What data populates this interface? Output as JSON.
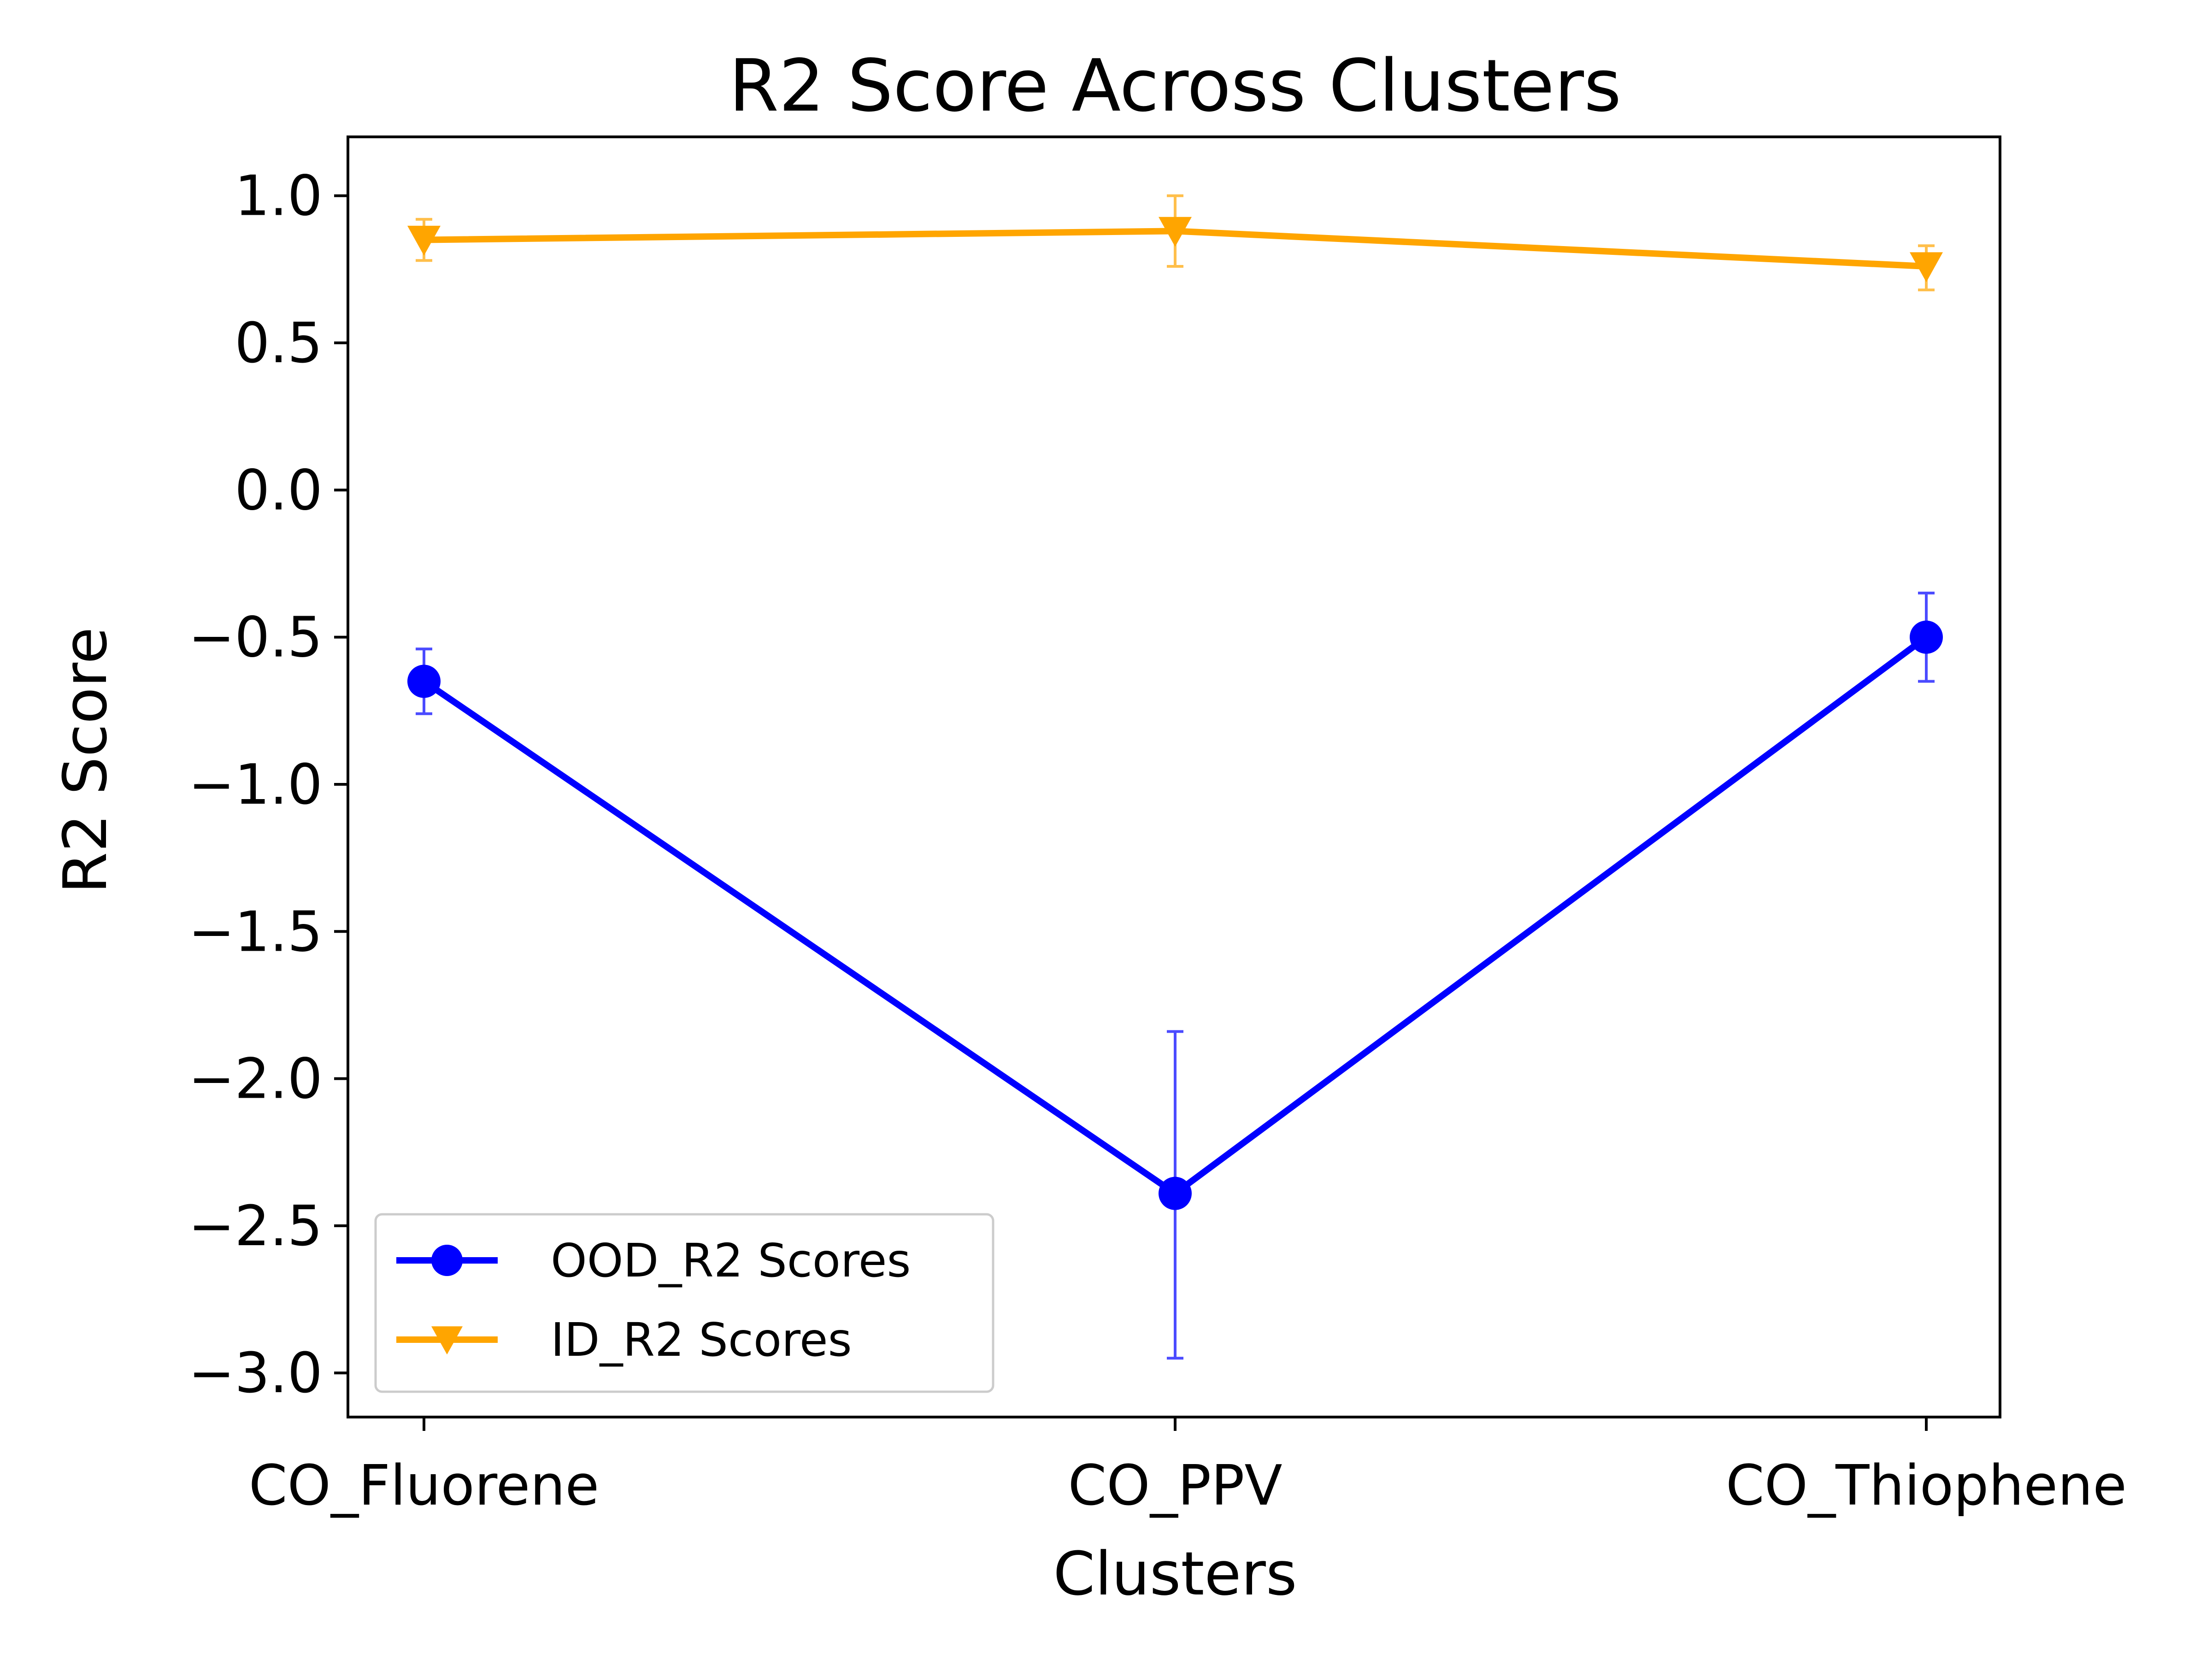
{
  "chart_data": {
    "type": "line",
    "title": "R2 Score Across Clusters",
    "xlabel": "Clusters",
    "ylabel": "R2 Score",
    "categories": [
      "CO_Fluorene",
      "CO_PPV",
      "CO_Thiophene"
    ],
    "ylim": [
      -3.15,
      1.2
    ],
    "yticks": [
      1.0,
      0.5,
      0.0,
      -0.5,
      -1.0,
      -1.5,
      -2.0,
      -2.5,
      -3.0
    ],
    "ytick_labels": [
      "1.0",
      "0.5",
      "0.0",
      "−0.5",
      "−1.0",
      "−1.5",
      "−2.0",
      "−2.5",
      "−3.0"
    ],
    "grid": false,
    "legend_position": "lower-left",
    "series": [
      {
        "name": "OOD_R2 Scores",
        "color": "#0000ff",
        "marker": "circle",
        "values": [
          -0.65,
          -2.39,
          -0.5
        ],
        "error_low": [
          -0.76,
          -2.95,
          -0.65
        ],
        "error_high": [
          -0.54,
          -1.84,
          -0.35
        ]
      },
      {
        "name": "ID_R2 Scores",
        "color": "#ffa500",
        "marker": "triangle-down",
        "values": [
          0.85,
          0.88,
          0.76
        ],
        "error_low": [
          0.78,
          0.76,
          0.68
        ],
        "error_high": [
          0.92,
          1.0,
          0.83
        ]
      }
    ]
  }
}
